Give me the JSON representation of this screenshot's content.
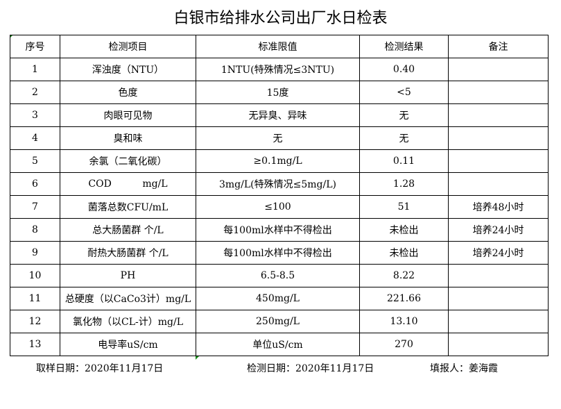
{
  "title": "白银市给排水公司出厂水日检表",
  "headers": [
    "序号",
    "检测项目",
    "标准限值",
    "检测结果",
    "备注"
  ],
  "rows": [
    [
      "1",
      "浑浊度（NTU）",
      "1NTU(特殊情况≤3NTU)",
      "0.40",
      ""
    ],
    [
      "2",
      "色度",
      "15度",
      "<5",
      ""
    ],
    [
      "3",
      "肉眼可见物",
      "无异臭、异味",
      "无",
      ""
    ],
    [
      "4",
      "臭和味",
      "无",
      "无",
      ""
    ],
    [
      "5",
      "余氯（二氧化碳）",
      "≥0.1mg/L",
      "0.11",
      ""
    ],
    [
      "6",
      "COD          mg/L",
      "3mg/L(特殊情况≤5mg/L)",
      "1.28",
      ""
    ],
    [
      "7",
      "菌落总数CFU/mL",
      "≤100",
      "51",
      "培养48小时"
    ],
    [
      "8",
      "总大肠菌群 个/L",
      "每100ml水样中不得检出",
      "未检出",
      "培养24小时"
    ],
    [
      "9",
      "耐热大肠菌群 个/L",
      "每100ml水样中不得检出",
      "未检出",
      "培养24小时"
    ],
    [
      "10",
      "PH",
      "6.5-8.5",
      "8.22",
      ""
    ],
    [
      "11",
      "总硬度（以CaCo3计）mg/L",
      "450mg/L",
      "221.66",
      ""
    ],
    [
      "12",
      "氯化物（以CL-计）mg/L",
      "250mg/L",
      "13.10",
      ""
    ],
    [
      "13",
      "电导率uS/cm",
      "单位uS/cm",
      "270",
      ""
    ]
  ],
  "footer": {
    "sampling_date": "取样日期：2020年11月17日",
    "test_date": "检测日期：2020年11月17日",
    "reporter": "填报人：姜海霞"
  }
}
